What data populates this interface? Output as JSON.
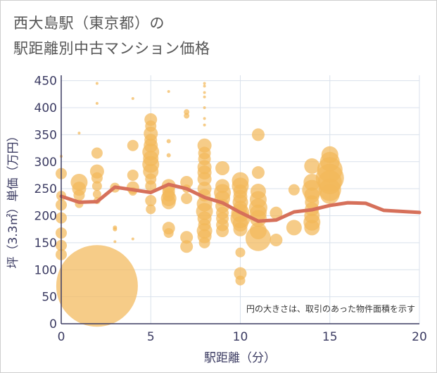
{
  "title": {
    "line1": "西大島駅（東京都）の",
    "line2": "駅距離別中古マンション価格"
  },
  "note": "円の大きさは、取引のあった物件面積を示す",
  "chart_data": {
    "type": "scatter",
    "xlabel": "駅距離（分）",
    "ylabel": "坪（3.3㎡）単価（万円）",
    "xlim": [
      0,
      20
    ],
    "ylim": [
      0,
      460
    ],
    "xticks": [
      0,
      5,
      10,
      15,
      20
    ],
    "yticks": [
      0,
      50,
      100,
      150,
      200,
      250,
      300,
      350,
      400,
      450
    ],
    "grid": true,
    "colors": {
      "bubble": "#f2b95a",
      "line": "#d6705a"
    },
    "bubbles": [
      {
        "x": 0,
        "y": 310,
        "s": 2
      },
      {
        "x": 0,
        "y": 278,
        "s": 8
      },
      {
        "x": 0,
        "y": 237,
        "s": 7
      },
      {
        "x": 0,
        "y": 220,
        "s": 8
      },
      {
        "x": 0,
        "y": 196,
        "s": 8
      },
      {
        "x": 0,
        "y": 168,
        "s": 8
      },
      {
        "x": 0,
        "y": 145,
        "s": 8
      },
      {
        "x": 0,
        "y": 128,
        "s": 8
      },
      {
        "x": 1,
        "y": 353,
        "s": 2
      },
      {
        "x": 1,
        "y": 262,
        "s": 12
      },
      {
        "x": 1,
        "y": 250,
        "s": 10
      },
      {
        "x": 1,
        "y": 238,
        "s": 8
      },
      {
        "x": 1,
        "y": 222,
        "s": 6
      },
      {
        "x": 2,
        "y": 445,
        "s": 2
      },
      {
        "x": 2,
        "y": 408,
        "s": 2
      },
      {
        "x": 2,
        "y": 316,
        "s": 8
      },
      {
        "x": 2,
        "y": 282,
        "s": 10
      },
      {
        "x": 2,
        "y": 270,
        "s": 8
      },
      {
        "x": 2,
        "y": 255,
        "s": 7
      },
      {
        "x": 2,
        "y": 240,
        "s": 6
      },
      {
        "x": 2,
        "y": 228,
        "s": 5
      },
      {
        "x": 2,
        "y": 70,
        "s": 58
      },
      {
        "x": 3,
        "y": 252,
        "s": 7
      },
      {
        "x": 3,
        "y": 178,
        "s": 3
      },
      {
        "x": 3,
        "y": 175,
        "s": 3
      },
      {
        "x": 3,
        "y": 152,
        "s": 2
      },
      {
        "x": 4,
        "y": 417,
        "s": 2
      },
      {
        "x": 4,
        "y": 330,
        "s": 8
      },
      {
        "x": 4,
        "y": 275,
        "s": 8
      },
      {
        "x": 4,
        "y": 252,
        "s": 9
      },
      {
        "x": 4,
        "y": 245,
        "s": 6
      },
      {
        "x": 4,
        "y": 157,
        "s": 2
      },
      {
        "x": 5,
        "y": 378,
        "s": 9
      },
      {
        "x": 5,
        "y": 366,
        "s": 8
      },
      {
        "x": 5,
        "y": 352,
        "s": 10
      },
      {
        "x": 5,
        "y": 340,
        "s": 9
      },
      {
        "x": 5,
        "y": 330,
        "s": 10
      },
      {
        "x": 5,
        "y": 318,
        "s": 12
      },
      {
        "x": 5,
        "y": 306,
        "s": 11
      },
      {
        "x": 5,
        "y": 295,
        "s": 12
      },
      {
        "x": 5,
        "y": 282,
        "s": 11
      },
      {
        "x": 5,
        "y": 268,
        "s": 8
      },
      {
        "x": 5,
        "y": 255,
        "s": 8
      },
      {
        "x": 5,
        "y": 228,
        "s": 8
      },
      {
        "x": 5,
        "y": 212,
        "s": 7
      },
      {
        "x": 6,
        "y": 430,
        "s": 2
      },
      {
        "x": 6,
        "y": 338,
        "s": 3
      },
      {
        "x": 6,
        "y": 312,
        "s": 3
      },
      {
        "x": 6,
        "y": 255,
        "s": 10
      },
      {
        "x": 6,
        "y": 245,
        "s": 9
      },
      {
        "x": 6,
        "y": 238,
        "s": 9
      },
      {
        "x": 6,
        "y": 232,
        "s": 11
      },
      {
        "x": 6,
        "y": 225,
        "s": 10
      },
      {
        "x": 6,
        "y": 177,
        "s": 9
      },
      {
        "x": 6,
        "y": 168,
        "s": 7
      },
      {
        "x": 7,
        "y": 392,
        "s": 4
      },
      {
        "x": 7,
        "y": 385,
        "s": 4
      },
      {
        "x": 7,
        "y": 262,
        "s": 9
      },
      {
        "x": 7,
        "y": 250,
        "s": 6
      },
      {
        "x": 7,
        "y": 232,
        "s": 8
      },
      {
        "x": 7,
        "y": 160,
        "s": 9
      },
      {
        "x": 7,
        "y": 143,
        "s": 9
      },
      {
        "x": 8,
        "y": 445,
        "s": 2
      },
      {
        "x": 8,
        "y": 440,
        "s": 2
      },
      {
        "x": 8,
        "y": 428,
        "s": 2
      },
      {
        "x": 8,
        "y": 420,
        "s": 2
      },
      {
        "x": 8,
        "y": 400,
        "s": 2
      },
      {
        "x": 8,
        "y": 380,
        "s": 2
      },
      {
        "x": 8,
        "y": 368,
        "s": 2
      },
      {
        "x": 8,
        "y": 330,
        "s": 10
      },
      {
        "x": 8,
        "y": 316,
        "s": 9
      },
      {
        "x": 8,
        "y": 305,
        "s": 9
      },
      {
        "x": 8,
        "y": 290,
        "s": 10
      },
      {
        "x": 8,
        "y": 280,
        "s": 10
      },
      {
        "x": 8,
        "y": 268,
        "s": 10
      },
      {
        "x": 8,
        "y": 250,
        "s": 10
      },
      {
        "x": 8,
        "y": 238,
        "s": 9
      },
      {
        "x": 8,
        "y": 222,
        "s": 11
      },
      {
        "x": 8,
        "y": 208,
        "s": 12
      },
      {
        "x": 8,
        "y": 195,
        "s": 10
      },
      {
        "x": 8,
        "y": 183,
        "s": 9
      },
      {
        "x": 8,
        "y": 172,
        "s": 11
      },
      {
        "x": 8,
        "y": 162,
        "s": 10
      },
      {
        "x": 8,
        "y": 150,
        "s": 8
      },
      {
        "x": 9,
        "y": 288,
        "s": 10
      },
      {
        "x": 9,
        "y": 255,
        "s": 10
      },
      {
        "x": 9,
        "y": 243,
        "s": 12
      },
      {
        "x": 9,
        "y": 232,
        "s": 11
      },
      {
        "x": 9,
        "y": 218,
        "s": 10
      },
      {
        "x": 9,
        "y": 205,
        "s": 9
      },
      {
        "x": 9,
        "y": 195,
        "s": 9
      },
      {
        "x": 9,
        "y": 183,
        "s": 9
      },
      {
        "x": 9,
        "y": 172,
        "s": 9
      },
      {
        "x": 10,
        "y": 265,
        "s": 12
      },
      {
        "x": 10,
        "y": 255,
        "s": 12
      },
      {
        "x": 10,
        "y": 245,
        "s": 10
      },
      {
        "x": 10,
        "y": 235,
        "s": 10
      },
      {
        "x": 10,
        "y": 225,
        "s": 11
      },
      {
        "x": 10,
        "y": 215,
        "s": 10
      },
      {
        "x": 10,
        "y": 205,
        "s": 13
      },
      {
        "x": 10,
        "y": 195,
        "s": 14
      },
      {
        "x": 10,
        "y": 185,
        "s": 11
      },
      {
        "x": 10,
        "y": 175,
        "s": 10
      },
      {
        "x": 10,
        "y": 132,
        "s": 7
      },
      {
        "x": 10,
        "y": 93,
        "s": 9
      },
      {
        "x": 10,
        "y": 80,
        "s": 7
      },
      {
        "x": 11,
        "y": 350,
        "s": 9
      },
      {
        "x": 11,
        "y": 280,
        "s": 9
      },
      {
        "x": 11,
        "y": 245,
        "s": 11
      },
      {
        "x": 11,
        "y": 230,
        "s": 12
      },
      {
        "x": 11,
        "y": 215,
        "s": 13
      },
      {
        "x": 11,
        "y": 205,
        "s": 12
      },
      {
        "x": 11,
        "y": 195,
        "s": 12
      },
      {
        "x": 11,
        "y": 172,
        "s": 12
      },
      {
        "x": 11,
        "y": 158,
        "s": 18
      },
      {
        "x": 12,
        "y": 205,
        "s": 9
      },
      {
        "x": 12,
        "y": 155,
        "s": 9
      },
      {
        "x": 13,
        "y": 248,
        "s": 8
      },
      {
        "x": 13,
        "y": 178,
        "s": 11
      },
      {
        "x": 14,
        "y": 292,
        "s": 11
      },
      {
        "x": 14,
        "y": 262,
        "s": 12
      },
      {
        "x": 14,
        "y": 248,
        "s": 14
      },
      {
        "x": 14,
        "y": 238,
        "s": 11
      },
      {
        "x": 14,
        "y": 225,
        "s": 10
      },
      {
        "x": 14,
        "y": 212,
        "s": 10
      },
      {
        "x": 14,
        "y": 200,
        "s": 11
      },
      {
        "x": 14,
        "y": 188,
        "s": 12
      },
      {
        "x": 14,
        "y": 178,
        "s": 11
      },
      {
        "x": 15,
        "y": 313,
        "s": 12
      },
      {
        "x": 15,
        "y": 300,
        "s": 14
      },
      {
        "x": 15,
        "y": 285,
        "s": 18
      },
      {
        "x": 15,
        "y": 270,
        "s": 20
      },
      {
        "x": 15,
        "y": 262,
        "s": 17
      },
      {
        "x": 15,
        "y": 248,
        "s": 16
      },
      {
        "x": 15,
        "y": 240,
        "s": 14
      }
    ],
    "trend": {
      "x": [
        0,
        1,
        2,
        3,
        4,
        5,
        6,
        7,
        8,
        9,
        10,
        11,
        12,
        13,
        14,
        15,
        16,
        17,
        18,
        19,
        20
      ],
      "y": [
        236,
        225,
        226,
        253,
        248,
        243,
        258,
        250,
        234,
        224,
        206,
        190,
        192,
        207,
        211,
        219,
        224,
        223,
        210,
        208,
        206
      ]
    }
  }
}
